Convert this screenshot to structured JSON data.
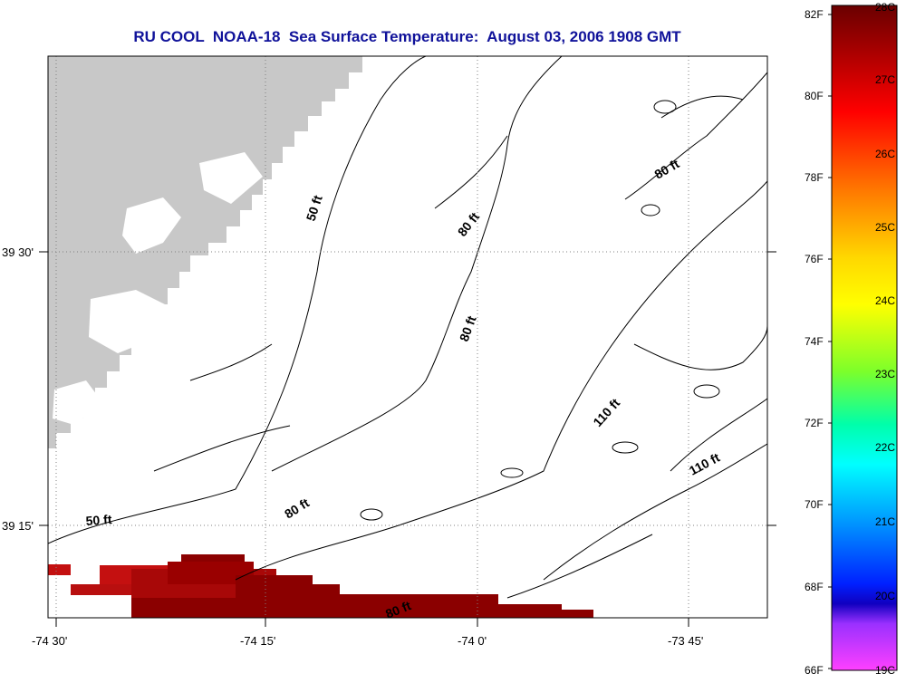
{
  "title": "RU COOL  NOAA-18  Sea Surface Temperature:  August 03, 2006 1908 GMT",
  "axes": {
    "lon_ticks": [
      "-74 30'",
      "-74 15'",
      "-74 0'",
      "-73 45'"
    ],
    "lat_ticks": [
      "39 30'",
      "39 15'"
    ]
  },
  "contour_labels": [
    "50 ft",
    "80 ft",
    "80 ft",
    "80 ft",
    "110 ft",
    "110 ft",
    "50 ft",
    "80 ft",
    "80 ft"
  ],
  "colorbar": {
    "fahrenheit": [
      "82F",
      "80F",
      "78F",
      "76F",
      "74F",
      "72F",
      "70F",
      "68F",
      "66F"
    ],
    "celsius": [
      "28C",
      "27C",
      "26C",
      "25C",
      "24C",
      "23C",
      "22C",
      "21C",
      "20C",
      "19C"
    ],
    "min_c": 19,
    "max_c": 28
  },
  "colors": {
    "title": "#10129a",
    "land": "#c8c8c8",
    "sst_warm": "#8b0000",
    "sst_hot": "#c41010"
  }
}
